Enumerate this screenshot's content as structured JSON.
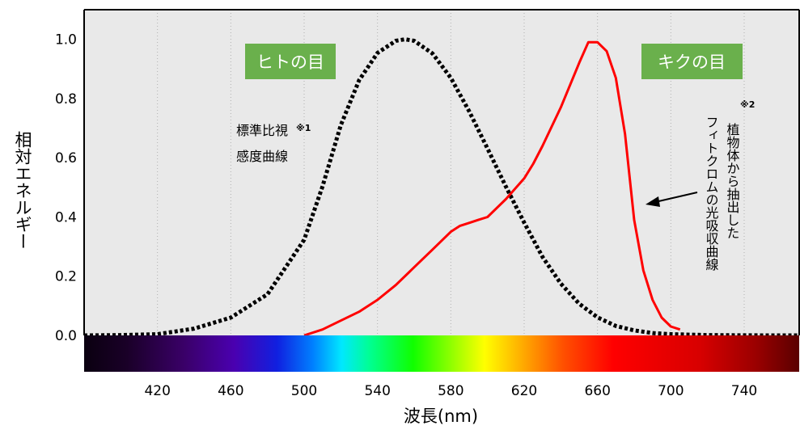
{
  "chart_data": {
    "type": "line",
    "xlabel": "波長(nm)",
    "ylabel": "相対エネルギー",
    "xlim": [
      380,
      770
    ],
    "ylim": [
      0,
      1.1
    ],
    "x_ticks": [
      420,
      460,
      500,
      540,
      580,
      620,
      660,
      700,
      740
    ],
    "y_ticks": [
      "0.0",
      "0.2",
      "0.4",
      "0.6",
      "0.8",
      "1.0"
    ],
    "grid": true,
    "series": [
      {
        "name": "標準比視感度曲線",
        "style": "dotted",
        "color": "#000000",
        "x": [
          380,
          400,
          420,
          440,
          460,
          480,
          500,
          510,
          520,
          530,
          540,
          550,
          555,
          560,
          570,
          580,
          590,
          600,
          610,
          620,
          630,
          640,
          650,
          660,
          670,
          680,
          690,
          700,
          720,
          740,
          760,
          770
        ],
        "y": [
          0,
          0.001,
          0.004,
          0.023,
          0.06,
          0.139,
          0.323,
          0.503,
          0.71,
          0.862,
          0.954,
          0.995,
          1.0,
          0.995,
          0.952,
          0.87,
          0.757,
          0.631,
          0.503,
          0.381,
          0.265,
          0.175,
          0.107,
          0.061,
          0.032,
          0.017,
          0.008,
          0.004,
          0.001,
          0.0002,
          0,
          0
        ]
      },
      {
        "name": "植物体から抽出したフィトクロムの光吸収曲線",
        "style": "solid",
        "color": "#ff0000",
        "x": [
          500,
          510,
          520,
          530,
          540,
          550,
          560,
          570,
          580,
          585,
          590,
          595,
          600,
          610,
          620,
          625,
          630,
          640,
          650,
          655,
          660,
          665,
          670,
          675,
          680,
          685,
          690,
          695,
          700,
          705
        ],
        "y": [
          0,
          0.02,
          0.05,
          0.08,
          0.12,
          0.17,
          0.23,
          0.29,
          0.35,
          0.37,
          0.38,
          0.39,
          0.4,
          0.46,
          0.53,
          0.58,
          0.64,
          0.77,
          0.92,
          0.99,
          0.99,
          0.96,
          0.87,
          0.68,
          0.39,
          0.22,
          0.12,
          0.06,
          0.03,
          0.02
        ]
      }
    ],
    "spectrum_bar": true
  },
  "badges": {
    "human": "ヒトの目",
    "chrysanthemum": "キクの目",
    "color": "#6ab04c"
  },
  "annotations": {
    "human_curve_line1": "標準比視",
    "human_curve_mark": "※1",
    "human_curve_line2": "感度曲線",
    "plant_curve_col1": "植物体から抽出した",
    "plant_curve_col2": "フィトクロムの光吸収曲線",
    "plant_curve_mark": "※2"
  }
}
